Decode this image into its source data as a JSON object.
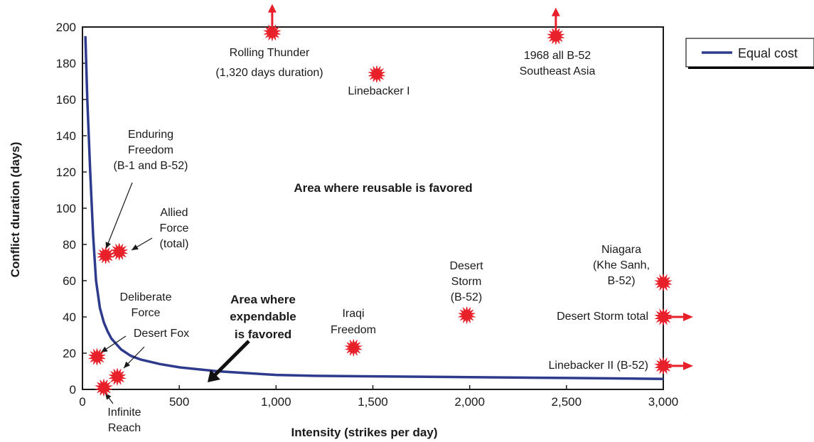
{
  "chart_data": {
    "type": "scatter",
    "title": "",
    "xlabel": "Intensity (strikes per day)",
    "ylabel": "Conflict duration (days)",
    "xlim": [
      0,
      3000
    ],
    "ylim": [
      0,
      200
    ],
    "x_ticks": [
      "0",
      "500",
      "1,000",
      "1,500",
      "2,000",
      "2,500",
      "3,000"
    ],
    "x_tick_values": [
      0,
      500,
      1000,
      1500,
      2000,
      2500,
      3000
    ],
    "y_ticks": [
      "0",
      "20",
      "40",
      "60",
      "80",
      "100",
      "120",
      "140",
      "160",
      "180",
      "200"
    ],
    "y_tick_values": [
      0,
      20,
      40,
      60,
      80,
      100,
      120,
      140,
      160,
      180,
      200
    ],
    "grid": false,
    "legend_position": "top-right",
    "colors": {
      "curve": "#2e3a8c",
      "marker": "#e8202a",
      "arrow": "#e8202a",
      "pointer": "#1a1a1a"
    },
    "series": [
      {
        "name": "Equal cost",
        "type": "line",
        "x": [
          15,
          25,
          40,
          55,
          70,
          90,
          110,
          130,
          150,
          175,
          200,
          250,
          300,
          400,
          500,
          700,
          1000,
          1200,
          1500,
          2000,
          2500,
          3000
        ],
        "y": [
          195,
          160,
          120,
          85,
          60,
          45,
          37,
          32,
          28,
          25,
          22,
          18.5,
          16.5,
          14,
          12.2,
          10,
          8,
          7.5,
          7.2,
          6.8,
          6.3,
          5.8
        ]
      }
    ],
    "points": [
      {
        "name": "rolling-thunder",
        "x": 980,
        "y": 197,
        "arrow": "up",
        "label": [
          "Rolling Thunder",
          "(1,320 days duration)"
        ],
        "anchor": "middle"
      },
      {
        "name": "b52-1968",
        "x": 2445,
        "y": 195,
        "arrow": "up",
        "label": [
          "1968 all B-52",
          "Southeast Asia"
        ],
        "anchor": "middle"
      },
      {
        "name": "linebacker-i",
        "x": 1520,
        "y": 174,
        "arrow": "",
        "label": [
          "Linebacker I"
        ],
        "anchor": "middle"
      },
      {
        "name": "enduring-freedom",
        "x": 120,
        "y": 74,
        "arrow": "",
        "label": [
          "Enduring",
          "Freedom",
          "(B-1 and B-52)"
        ],
        "anchor": "middle"
      },
      {
        "name": "allied-force",
        "x": 190,
        "y": 76,
        "arrow": "",
        "label": [
          "Allied",
          "Force",
          "(total)"
        ],
        "anchor": "middle"
      },
      {
        "name": "deliberate-force",
        "x": 75,
        "y": 18,
        "arrow": "",
        "label": [
          "Deliberate",
          "Force"
        ],
        "anchor": "middle"
      },
      {
        "name": "desert-fox",
        "x": 180,
        "y": 7,
        "arrow": "",
        "label": [
          "Desert Fox"
        ],
        "anchor": "middle"
      },
      {
        "name": "infinite-reach",
        "x": 110,
        "y": 1,
        "arrow": "",
        "label": [
          "Infinite",
          "Reach"
        ],
        "anchor": "middle"
      },
      {
        "name": "iraqi-freedom",
        "x": 1400,
        "y": 23,
        "arrow": "",
        "label": [
          "Iraqi",
          "Freedom"
        ],
        "anchor": "middle"
      },
      {
        "name": "desert-storm-b52",
        "x": 1985,
        "y": 41,
        "arrow": "",
        "label": [
          "Desert",
          "Storm",
          "(B-52)"
        ],
        "anchor": "middle"
      },
      {
        "name": "niagara",
        "x": 3000,
        "y": 59,
        "arrow": "",
        "label": [
          "Niagara",
          "(Khe Sanh,",
          "B-52)"
        ],
        "anchor": "end"
      },
      {
        "name": "desert-storm-total",
        "x": 3000,
        "y": 40,
        "arrow": "right",
        "label": [
          "Desert Storm total"
        ],
        "anchor": "end"
      },
      {
        "name": "linebacker-ii",
        "x": 3000,
        "y": 13,
        "arrow": "right",
        "label": [
          "Linebacker II (B-52)"
        ],
        "anchor": "end"
      }
    ],
    "regions": [
      {
        "name": "reusable-region",
        "label": [
          "Area where reusable is favored"
        ]
      },
      {
        "name": "expendable-region",
        "label": [
          "Area where",
          "expendable",
          "is favored"
        ]
      }
    ],
    "legend": {
      "entries": [
        "Equal cost"
      ]
    }
  }
}
